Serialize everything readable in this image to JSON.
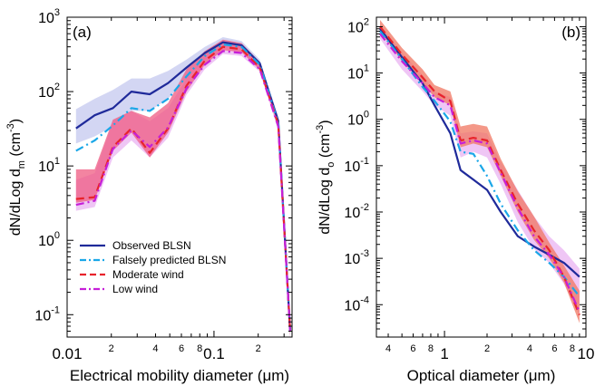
{
  "chart_data": [
    {
      "type": "line",
      "panel_label": "(a)",
      "xlabel": "Electrical mobility diameter (μm)",
      "ylabel_main": "dN/dLog d",
      "ylabel_sub": "m",
      "ylabel_unit": " (cm",
      "ylabel_exp": "-3",
      "ylabel_close": ")",
      "xscale": "log",
      "yscale": "log",
      "xlim": [
        0.01,
        0.34
      ],
      "ylim": [
        0.05,
        1000
      ],
      "x_major_ticks": [
        {
          "v": 0.01,
          "t": "0.01"
        },
        {
          "v": 0.1,
          "t": "0.1"
        }
      ],
      "x_minor_labeled": [
        {
          "v": 0.02,
          "t": "2"
        },
        {
          "v": 0.04,
          "t": "4"
        },
        {
          "v": 0.06,
          "t": "6"
        },
        {
          "v": 0.08,
          "t": "8"
        },
        {
          "v": 0.2,
          "t": "2"
        }
      ],
      "y_ticks": [
        {
          "v": 0.1,
          "b": "10",
          "e": "-1"
        },
        {
          "v": 1,
          "b": "10",
          "e": "0"
        },
        {
          "v": 10,
          "b": "10",
          "e": "1"
        },
        {
          "v": 100,
          "b": "10",
          "e": "2"
        },
        {
          "v": 1000,
          "b": "10",
          "e": "3"
        }
      ],
      "legend": {
        "placement": "bottom-left",
        "entries": [
          {
            "label": "Observed BLSN",
            "color": "#1f2a9a",
            "dash": "solid"
          },
          {
            "label": "Falsely predicted BLSN",
            "color": "#1aa7e8",
            "dash": "dashdot"
          },
          {
            "label": "Moderate wind",
            "color": "#e8232b",
            "dash": "dash"
          },
          {
            "label": "Low wind",
            "color": "#c61fd8",
            "dash": "dashdot"
          }
        ]
      },
      "x": [
        0.0115,
        0.0154,
        0.0205,
        0.0274,
        0.0365,
        0.0487,
        0.065,
        0.0866,
        0.115,
        0.154,
        0.205,
        0.274,
        0.33
      ],
      "series": [
        {
          "name": "Observed BLSN",
          "color": "#1f2a9a",
          "dash": "solid",
          "values": [
            32,
            48,
            60,
            100,
            92,
            130,
            210,
            330,
            460,
            420,
            240,
            40,
            0.06
          ]
        },
        {
          "name": "Falsely predicted BLSN",
          "color": "#1aa7e8",
          "dash": "dashdot",
          "values": [
            16,
            22,
            35,
            60,
            55,
            80,
            160,
            300,
            430,
            400,
            230,
            38,
            0.06
          ]
        },
        {
          "name": "Moderate wind",
          "color": "#e8232b",
          "dash": "dash",
          "values": [
            3.6,
            3.8,
            18,
            32,
            15,
            32,
            120,
            260,
            400,
            370,
            210,
            36,
            0.06
          ]
        },
        {
          "name": "Low wind",
          "color": "#c61fd8",
          "dash": "dashdot",
          "values": [
            3.0,
            3.4,
            17,
            30,
            18,
            33,
            110,
            230,
            350,
            330,
            200,
            34,
            0.06
          ]
        }
      ],
      "bands": [
        {
          "series": "Observed BLSN",
          "color": "#c4c8ef",
          "low": [
            20,
            25,
            34,
            55,
            55,
            80,
            150,
            270,
            400,
            370,
            210,
            33,
            0.05
          ],
          "high": [
            58,
            80,
            105,
            150,
            150,
            190,
            270,
            400,
            540,
            480,
            270,
            46,
            0.08
          ]
        },
        {
          "series": "Low wind",
          "color": "#e9b3f2",
          "low": [
            2.5,
            2.8,
            13,
            22,
            13,
            24,
            90,
            200,
            320,
            300,
            185,
            30,
            0.05
          ],
          "high": [
            6.5,
            8,
            40,
            55,
            40,
            60,
            150,
            300,
            420,
            400,
            225,
            38,
            0.08
          ]
        },
        {
          "series": "Moderate wind",
          "color": "#ef5b82",
          "low": [
            3.2,
            3.5,
            16,
            28,
            13,
            28,
            100,
            230,
            360,
            340,
            195,
            33,
            0.05
          ],
          "high": [
            9,
            9,
            42,
            55,
            45,
            70,
            200,
            350,
            500,
            450,
            250,
            42,
            0.08
          ]
        }
      ]
    },
    {
      "type": "line",
      "panel_label": "(b)",
      "xlabel": "Optical diameter (μm)",
      "ylabel_main": "dN/dLog d",
      "ylabel_sub": "o",
      "ylabel_unit": " (cm",
      "ylabel_exp": "-3",
      "ylabel_close": ")",
      "xscale": "log",
      "yscale": "log",
      "xlim": [
        0.33,
        10
      ],
      "ylim": [
        2e-05,
        160
      ],
      "x_major_ticks": [
        {
          "v": 1,
          "t": "1"
        },
        {
          "v": 10,
          "t": "10"
        }
      ],
      "x_minor_labeled": [
        {
          "v": 0.4,
          "t": "4"
        },
        {
          "v": 0.6,
          "t": "6"
        },
        {
          "v": 0.8,
          "t": "8"
        },
        {
          "v": 2,
          "t": "2"
        },
        {
          "v": 4,
          "t": "4"
        },
        {
          "v": 6,
          "t": "6"
        },
        {
          "v": 8,
          "t": "8"
        }
      ],
      "y_ticks": [
        {
          "v": 0.0001,
          "b": "10",
          "e": "-4"
        },
        {
          "v": 0.001,
          "b": "10",
          "e": "-3"
        },
        {
          "v": 0.01,
          "b": "10",
          "e": "-2"
        },
        {
          "v": 0.1,
          "b": "10",
          "e": "-1"
        },
        {
          "v": 1,
          "b": "10",
          "e": "0"
        },
        {
          "v": 10,
          "b": "10",
          "e": "1"
        },
        {
          "v": 100,
          "b": "10",
          "e": "2"
        }
      ],
      "x": [
        0.35,
        0.5,
        0.7,
        0.85,
        1.1,
        1.3,
        1.6,
        2.0,
        2.5,
        3.3,
        4.3,
        5.5,
        7.0,
        9.0
      ],
      "series": [
        {
          "name": "Observed BLSN",
          "color": "#1f2a9a",
          "dash": "solid",
          "values": [
            90,
            22,
            6,
            2.0,
            0.5,
            0.08,
            0.05,
            0.03,
            0.01,
            0.003,
            0.0018,
            0.0012,
            0.0008,
            0.0004
          ]
        },
        {
          "name": "Falsely predicted BLSN",
          "color": "#1aa7e8",
          "dash": "dashdot",
          "values": [
            80,
            20,
            5,
            2.5,
            0.9,
            0.2,
            0.18,
            0.06,
            0.015,
            0.004,
            0.0015,
            0.0008,
            0.0004,
            0.00015
          ]
        },
        {
          "name": "Moderate wind",
          "color": "#e8232b",
          "dash": "dash",
          "values": [
            100,
            25,
            8,
            4.0,
            2.5,
            0.35,
            0.4,
            0.35,
            0.08,
            0.015,
            0.004,
            0.0015,
            0.0004,
            6e-05
          ]
        },
        {
          "name": "Low wind",
          "color": "#c61fd8",
          "dash": "dashdot",
          "values": [
            70,
            18,
            6,
            3.0,
            2.0,
            0.3,
            0.35,
            0.3,
            0.07,
            0.012,
            0.003,
            0.0012,
            0.0004,
            7e-05
          ]
        }
      ],
      "bands": [
        {
          "series": "Low wind",
          "color": "#e9b3f2",
          "low": [
            55,
            12,
            4,
            2.0,
            1.2,
            0.15,
            0.2,
            0.15,
            0.04,
            0.006,
            0.0016,
            0.0008,
            0.00028,
            6e-05
          ],
          "high": [
            110,
            28,
            9,
            4.0,
            3.0,
            0.5,
            0.55,
            0.5,
            0.12,
            0.03,
            0.008,
            0.003,
            0.0015,
            0.0006
          ]
        },
        {
          "series": "Moderate wind",
          "color": "#f07560",
          "low": [
            80,
            18,
            6,
            3.0,
            2.0,
            0.25,
            0.3,
            0.25,
            0.06,
            0.01,
            0.0025,
            0.001,
            0.0003,
            4e-05
          ],
          "high": [
            140,
            35,
            12,
            5.5,
            4.0,
            0.7,
            0.8,
            0.7,
            0.14,
            0.028,
            0.008,
            0.0022,
            0.0007,
            0.0002
          ]
        }
      ]
    }
  ]
}
